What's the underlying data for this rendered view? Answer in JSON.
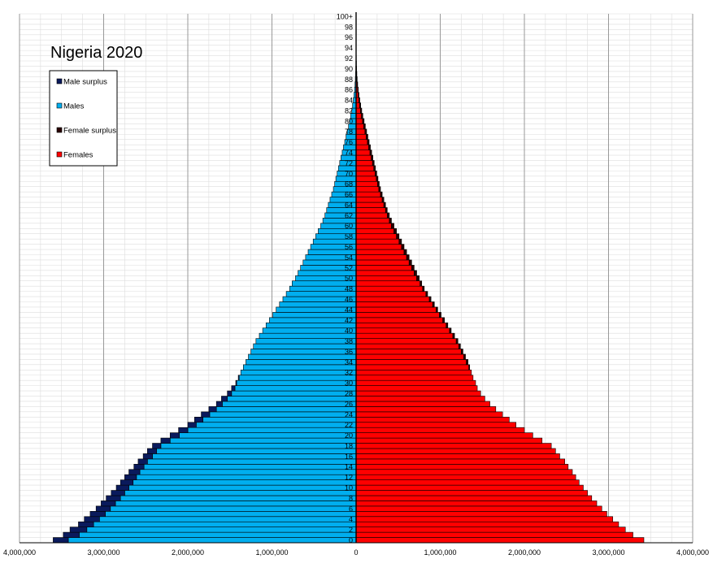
{
  "chart_data": {
    "type": "bar",
    "title": "Nigeria 2020",
    "orientation": "horizontal-pyramid",
    "xlim": [
      -4000000,
      4000000
    ],
    "x_tick_labels": [
      "4,000,000",
      "3,000,000",
      "2,000,000",
      "1,000,000",
      "0",
      "1,000,000",
      "2,000,000",
      "3,000,000",
      "4,000,000"
    ],
    "x_tick_values": [
      -4000000,
      -3000000,
      -2000000,
      -1000000,
      0,
      1000000,
      2000000,
      3000000,
      4000000
    ],
    "age_labels": [
      "0",
      "2",
      "4",
      "6",
      "8",
      "10",
      "12",
      "14",
      "16",
      "18",
      "20",
      "22",
      "24",
      "26",
      "28",
      "30",
      "32",
      "34",
      "36",
      "38",
      "40",
      "42",
      "44",
      "46",
      "48",
      "50",
      "52",
      "54",
      "56",
      "58",
      "60",
      "62",
      "64",
      "66",
      "68",
      "70",
      "72",
      "74",
      "76",
      "78",
      "80",
      "82",
      "84",
      "86",
      "88",
      "90",
      "92",
      "94",
      "96",
      "98",
      "100+"
    ],
    "ages": [
      0,
      1,
      2,
      3,
      4,
      5,
      6,
      7,
      8,
      9,
      10,
      11,
      12,
      13,
      14,
      15,
      16,
      17,
      18,
      19,
      20,
      21,
      22,
      23,
      24,
      25,
      26,
      27,
      28,
      29,
      30,
      31,
      32,
      33,
      34,
      35,
      36,
      37,
      38,
      39,
      40,
      41,
      42,
      43,
      44,
      45,
      46,
      47,
      48,
      49,
      50,
      51,
      52,
      53,
      54,
      55,
      56,
      57,
      58,
      59,
      60,
      61,
      62,
      63,
      64,
      65,
      66,
      67,
      68,
      69,
      70,
      71,
      72,
      73,
      74,
      75,
      76,
      77,
      78,
      79,
      80,
      81,
      82,
      83,
      84,
      85,
      86,
      87,
      88,
      89,
      90,
      91,
      92,
      93,
      94,
      95,
      96,
      97,
      98,
      99,
      100
    ],
    "legend": [
      "Male surplus",
      "Males",
      "Female surplus",
      "Females"
    ],
    "colors": {
      "male_surplus": "#0a1a5c",
      "males": "#00aeef",
      "female_surplus": "#2a0000",
      "females": "#ff0000",
      "grid_major": "#999999",
      "grid_minor": "#dddddd"
    },
    "grid": true,
    "legend_position": "top-left",
    "series": [
      {
        "name": "Males",
        "values": [
          3600000,
          3480000,
          3400000,
          3300000,
          3230000,
          3160000,
          3090000,
          3030000,
          2970000,
          2910000,
          2850000,
          2800000,
          2750000,
          2700000,
          2640000,
          2590000,
          2530000,
          2480000,
          2420000,
          2320000,
          2210000,
          2110000,
          2000000,
          1920000,
          1840000,
          1750000,
          1660000,
          1600000,
          1530000,
          1480000,
          1430000,
          1400000,
          1370000,
          1340000,
          1310000,
          1280000,
          1250000,
          1220000,
          1190000,
          1150000,
          1110000,
          1070000,
          1030000,
          990000,
          950000,
          910000,
          870000,
          830000,
          790000,
          760000,
          720000,
          690000,
          660000,
          630000,
          600000,
          570000,
          540000,
          510000,
          480000,
          450000,
          420000,
          395000,
          370000,
          350000,
          330000,
          310000,
          290000,
          270000,
          255000,
          240000,
          225000,
          210000,
          195000,
          180000,
          165000,
          150000,
          135000,
          120000,
          105000,
          90000,
          76000,
          64000,
          52000,
          42000,
          33000,
          25000,
          18000,
          13000,
          9000,
          6000,
          4000,
          2800,
          1900,
          1200,
          800,
          500,
          300,
          200,
          100,
          60,
          40
        ]
      },
      {
        "name": "Females",
        "values": [
          3420000,
          3290000,
          3200000,
          3120000,
          3050000,
          2980000,
          2920000,
          2860000,
          2800000,
          2750000,
          2700000,
          2650000,
          2610000,
          2570000,
          2520000,
          2480000,
          2420000,
          2370000,
          2320000,
          2210000,
          2100000,
          2000000,
          1900000,
          1820000,
          1740000,
          1660000,
          1590000,
          1530000,
          1480000,
          1440000,
          1420000,
          1390000,
          1370000,
          1350000,
          1330000,
          1300000,
          1270000,
          1240000,
          1210000,
          1170000,
          1130000,
          1090000,
          1050000,
          1010000,
          970000,
          930000,
          890000,
          850000,
          810000,
          780000,
          750000,
          720000,
          690000,
          660000,
          630000,
          600000,
          570000,
          540000,
          510000,
          480000,
          450000,
          420000,
          395000,
          370000,
          350000,
          330000,
          310000,
          290000,
          275000,
          260000,
          245000,
          230000,
          215000,
          200000,
          185000,
          170000,
          155000,
          140000,
          125000,
          110000,
          95000,
          80000,
          67000,
          55000,
          44000,
          34000,
          26000,
          19000,
          13000,
          9000,
          6000,
          4000,
          2700,
          1800,
          1200,
          800,
          500,
          300,
          200,
          100,
          60
        ]
      }
    ]
  }
}
